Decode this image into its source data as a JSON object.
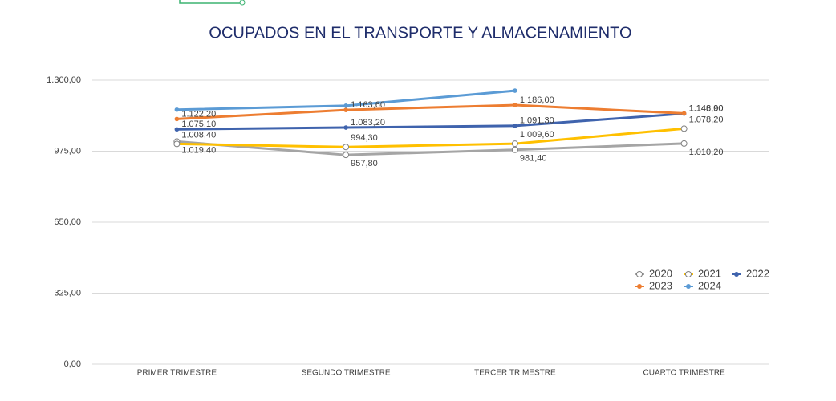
{
  "chart_data": {
    "type": "line",
    "title": "OCUPADOS EN EL TRANSPORTE Y ALMACENAMIENTO",
    "categories": [
      "PRIMER TRIMESTRE",
      "SEGUNDO TRIMESTRE",
      "TERCER TRIMESTRE",
      "CUARTO TRIMESTRE"
    ],
    "series": [
      {
        "name": "2020",
        "color": "#a5a5a5",
        "marker": "hollow",
        "values": [
          1019.4,
          957.8,
          981.4,
          1010.2
        ],
        "value_labels": [
          "1.019,40",
          "957,80",
          "981,40",
          "1.010,20"
        ]
      },
      {
        "name": "2021",
        "color": "#ffc000",
        "marker": "hollow",
        "values": [
          1008.4,
          994.3,
          1009.6,
          1078.2
        ],
        "value_labels": [
          "1.008,40",
          "994,30",
          "1.009,60",
          "1.078,20"
        ]
      },
      {
        "name": "2022",
        "color": "#3f63ad",
        "marker": "filled",
        "values": [
          1075.1,
          1083.2,
          1091.3,
          1146.9
        ],
        "value_labels": [
          "1.075,10",
          "1.083,20",
          "1.091,30",
          "1.146,90"
        ]
      },
      {
        "name": "2023",
        "color": "#ed7d31",
        "marker": "filled",
        "values": [
          1122.2,
          1163.6,
          1186.0,
          1148.0
        ],
        "value_labels": [
          "1.122,20",
          "1.163,60",
          "1.186,00",
          "1.148,00"
        ]
      },
      {
        "name": "2024",
        "color": "#5b9bd5",
        "marker": "filled",
        "values": [
          1165,
          1183,
          1252,
          null
        ]
      }
    ],
    "ylim": [
      0,
      1300
    ],
    "yticks": [
      {
        "value": 0,
        "label": "0,00"
      },
      {
        "value": 325,
        "label": "325,00"
      },
      {
        "value": 650,
        "label": "650,00"
      },
      {
        "value": 975,
        "label": "975,00"
      },
      {
        "value": 1300,
        "label": "1.300,00"
      }
    ],
    "grid": true,
    "legend": "right"
  }
}
